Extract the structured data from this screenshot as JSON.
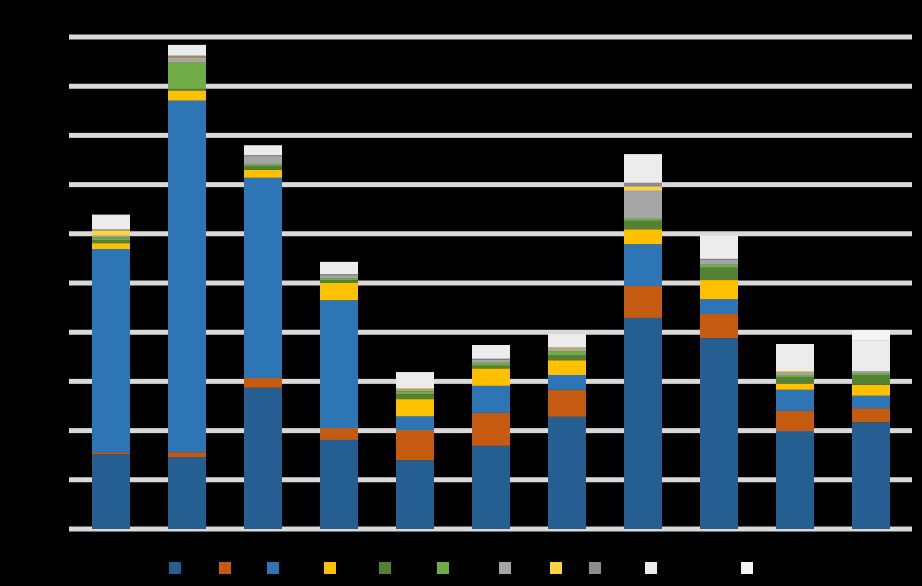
{
  "chart_data": {
    "type": "stacked-bar",
    "categories": [
      null,
      null,
      null,
      null,
      null,
      null,
      null,
      null,
      null,
      null,
      null
    ],
    "ylim": [
      0,
      10
    ],
    "yticks": [
      0,
      1,
      2,
      3,
      4,
      5,
      6,
      7,
      8,
      9,
      10
    ],
    "grid": true,
    "series": [
      {
        "color": "#255e91",
        "values": [
          1.52,
          1.46,
          2.87,
          1.81,
          1.4,
          1.69,
          2.28,
          4.29,
          3.88,
          1.99,
          2.17
        ]
      },
      {
        "color": "#c55a11",
        "values": [
          0.04,
          0.1,
          0.2,
          0.24,
          0.61,
          0.67,
          0.55,
          0.65,
          0.49,
          0.41,
          0.28
        ]
      },
      {
        "color": "#2e75b6",
        "values": [
          4.13,
          7.15,
          4.07,
          2.6,
          0.28,
          0.55,
          0.3,
          0.85,
          0.3,
          0.43,
          0.26
        ]
      },
      {
        "color": "#ffc000",
        "values": [
          0.12,
          0.2,
          0.16,
          0.35,
          0.35,
          0.35,
          0.3,
          0.3,
          0.39,
          0.12,
          0.22
        ]
      },
      {
        "color": "#548235",
        "values": [
          0.06,
          0.04,
          0.08,
          0.06,
          0.1,
          0.06,
          0.1,
          0.18,
          0.25,
          0.14,
          0.2
        ]
      },
      {
        "color": "#70ad47",
        "values": [
          0.06,
          0.53,
          0.04,
          0.04,
          0.06,
          0.06,
          0.08,
          0.04,
          0.06,
          0.04,
          0.04
        ]
      },
      {
        "color": "#a5a5a5",
        "values": [
          0.04,
          0.08,
          0.16,
          0.06,
          0.04,
          0.06,
          0.04,
          0.57,
          0.1,
          0.06,
          0.04
        ]
      },
      {
        "color": "#ffd23f",
        "values": [
          0.1,
          0.02,
          0,
          0,
          0.02,
          0,
          0.02,
          0.08,
          0,
          0.02,
          0
        ]
      },
      {
        "color": "#8c8c8c",
        "values": [
          0.02,
          0.04,
          0.02,
          0.02,
          0,
          0.02,
          0.02,
          0.08,
          0.02,
          0,
          0
        ]
      },
      {
        "color": "#ececec",
        "values": [
          0.3,
          0.22,
          0.2,
          0.25,
          0.33,
          0.28,
          0.27,
          0.58,
          0.47,
          0.55,
          0.63
        ]
      },
      {
        "color": "#f5f5f5",
        "values": [
          0,
          0,
          0,
          0,
          0,
          0,
          0,
          0,
          0,
          0,
          0.2
        ]
      }
    ]
  }
}
